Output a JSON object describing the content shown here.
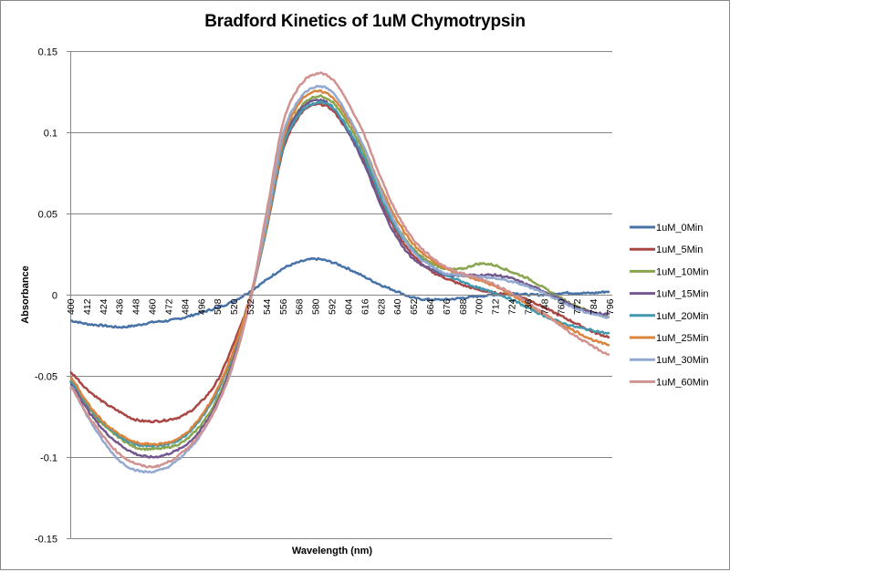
{
  "chart_data": {
    "type": "line",
    "title": "Bradford Kinetics of 1uM Chymotrypsin",
    "xlabel": "Wavelength (nm)",
    "ylabel": "Absorbance",
    "xlim": [
      400,
      798
    ],
    "ylim": [
      -0.15,
      0.15
    ],
    "y_ticks": [
      "0.15",
      "0.1",
      "0.05",
      "0",
      "-0.05",
      "-0.1",
      "-0.15"
    ],
    "y_tick_values": [
      0.15,
      0.1,
      0.05,
      0,
      -0.05,
      -0.1,
      -0.15
    ],
    "x_tick_labels": [
      "400",
      "412",
      "424",
      "436",
      "448",
      "460",
      "472",
      "484",
      "496",
      "508",
      "520",
      "532",
      "544",
      "556",
      "568",
      "580",
      "592",
      "604",
      "616",
      "628",
      "640",
      "652",
      "664",
      "676",
      "688",
      "700",
      "712",
      "724",
      "736",
      "748",
      "760",
      "772",
      "784",
      "796"
    ],
    "grid": "horizontal",
    "legend_position": "right",
    "x": [
      400,
      412,
      424,
      436,
      448,
      460,
      472,
      484,
      496,
      508,
      520,
      532,
      544,
      556,
      568,
      580,
      592,
      604,
      616,
      628,
      640,
      652,
      664,
      676,
      688,
      700,
      712,
      724,
      736,
      748,
      760,
      772,
      784,
      796
    ],
    "series": [
      {
        "name": "1uM_0Min",
        "color": "#4672a8",
        "values": [
          -0.016,
          -0.018,
          -0.019,
          -0.02,
          -0.019,
          -0.017,
          -0.016,
          -0.014,
          -0.011,
          -0.008,
          -0.004,
          0.002,
          0.009,
          0.016,
          0.02,
          0.022,
          0.02,
          0.016,
          0.011,
          0.006,
          0.002,
          -0.002,
          -0.003,
          -0.003,
          -0.002,
          -0.001,
          0.0,
          0.001,
          0.0,
          0.0,
          0.001,
          0.001,
          0.001,
          0.002
        ]
      },
      {
        "name": "1uM_5Min",
        "color": "#aa4643",
        "values": [
          -0.048,
          -0.058,
          -0.066,
          -0.072,
          -0.077,
          -0.078,
          -0.077,
          -0.074,
          -0.066,
          -0.053,
          -0.03,
          -0.002,
          0.04,
          0.088,
          0.11,
          0.117,
          0.114,
          0.1,
          0.082,
          0.058,
          0.038,
          0.024,
          0.015,
          0.01,
          0.006,
          0.003,
          0.001,
          0.0,
          -0.003,
          -0.008,
          -0.013,
          -0.018,
          -0.023,
          -0.026
        ]
      },
      {
        "name": "1uM_10Min",
        "color": "#89a54e",
        "values": [
          -0.054,
          -0.068,
          -0.08,
          -0.088,
          -0.094,
          -0.095,
          -0.094,
          -0.09,
          -0.08,
          -0.064,
          -0.038,
          -0.003,
          0.042,
          0.092,
          0.114,
          0.122,
          0.119,
          0.105,
          0.087,
          0.063,
          0.042,
          0.028,
          0.02,
          0.016,
          0.016,
          0.019,
          0.018,
          0.014,
          0.01,
          0.004,
          -0.002,
          -0.007,
          -0.011,
          -0.014
        ]
      },
      {
        "name": "1uM_15Min",
        "color": "#71588f",
        "values": [
          -0.055,
          -0.07,
          -0.083,
          -0.092,
          -0.098,
          -0.1,
          -0.098,
          -0.093,
          -0.083,
          -0.066,
          -0.04,
          -0.004,
          0.042,
          0.092,
          0.113,
          0.12,
          0.116,
          0.1,
          0.08,
          0.055,
          0.035,
          0.022,
          0.016,
          0.012,
          0.012,
          0.012,
          0.012,
          0.01,
          0.006,
          0.002,
          -0.003,
          -0.008,
          -0.011,
          -0.012
        ]
      },
      {
        "name": "1uM_20Min",
        "color": "#4198af",
        "values": [
          -0.053,
          -0.067,
          -0.079,
          -0.087,
          -0.092,
          -0.093,
          -0.092,
          -0.087,
          -0.076,
          -0.06,
          -0.035,
          -0.002,
          0.04,
          0.09,
          0.111,
          0.118,
          0.116,
          0.102,
          0.084,
          0.06,
          0.04,
          0.027,
          0.018,
          0.012,
          0.008,
          0.004,
          0.001,
          -0.003,
          -0.008,
          -0.013,
          -0.017,
          -0.02,
          -0.022,
          -0.024
        ]
      },
      {
        "name": "1uM_25Min",
        "color": "#db843d",
        "values": [
          -0.051,
          -0.066,
          -0.078,
          -0.086,
          -0.091,
          -0.092,
          -0.091,
          -0.086,
          -0.075,
          -0.058,
          -0.034,
          -0.002,
          0.042,
          0.094,
          0.118,
          0.125,
          0.122,
          0.108,
          0.09,
          0.066,
          0.046,
          0.031,
          0.022,
          0.016,
          0.012,
          0.009,
          0.005,
          0.0,
          -0.006,
          -0.012,
          -0.018,
          -0.023,
          -0.028,
          -0.031
        ]
      },
      {
        "name": "1uM_30Min",
        "color": "#93a9cf",
        "values": [
          -0.056,
          -0.074,
          -0.09,
          -0.102,
          -0.108,
          -0.109,
          -0.106,
          -0.098,
          -0.086,
          -0.068,
          -0.042,
          -0.004,
          0.045,
          0.098,
          0.12,
          0.128,
          0.125,
          0.11,
          0.09,
          0.064,
          0.042,
          0.026,
          0.018,
          0.013,
          0.012,
          0.011,
          0.01,
          0.008,
          0.005,
          0.001,
          -0.004,
          -0.009,
          -0.012,
          -0.014
        ]
      },
      {
        "name": "1uM_60Min",
        "color": "#d19392",
        "values": [
          -0.057,
          -0.073,
          -0.087,
          -0.098,
          -0.104,
          -0.106,
          -0.103,
          -0.096,
          -0.085,
          -0.068,
          -0.042,
          -0.004,
          0.05,
          0.105,
          0.128,
          0.136,
          0.133,
          0.118,
          0.098,
          0.072,
          0.05,
          0.034,
          0.024,
          0.017,
          0.013,
          0.01,
          0.006,
          0.001,
          -0.005,
          -0.012,
          -0.019,
          -0.026,
          -0.032,
          -0.037
        ]
      }
    ]
  }
}
